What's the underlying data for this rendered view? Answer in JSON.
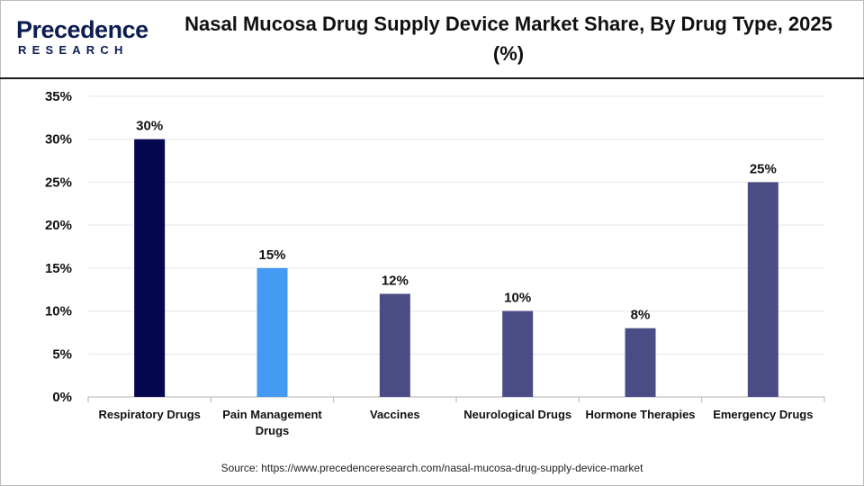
{
  "brand": {
    "logo_top": "Precedence",
    "logo_bottom": "RESEARCH"
  },
  "source_text": "Source: https://www.precedenceresearch.com/nasal-mucosa-drug-supply-device-market",
  "chart_data": {
    "type": "bar",
    "title": "Nasal Mucosa Drug Supply Device Market Share, By Drug Type, 2025 (%)",
    "xlabel": "",
    "ylabel": "",
    "categories": [
      [
        "Respiratory Drugs"
      ],
      [
        "Pain Management",
        "Drugs"
      ],
      [
        "Vaccines"
      ],
      [
        "Neurological Drugs"
      ],
      [
        "Hormone Therapies"
      ],
      [
        "Emergency Drugs"
      ]
    ],
    "values": [
      30,
      15,
      12,
      10,
      8,
      25
    ],
    "value_labels": [
      "30%",
      "15%",
      "12%",
      "10%",
      "8%",
      "25%"
    ],
    "bar_colors": [
      "#05074f",
      "#4499f3",
      "#4a4c86",
      "#4a4c86",
      "#4a4c86",
      "#4a4c86"
    ],
    "ylim": [
      0,
      35
    ],
    "yticks": [
      0,
      5,
      10,
      15,
      20,
      25,
      30,
      35
    ],
    "ytick_labels": [
      "0%",
      "5%",
      "10%",
      "15%",
      "20%",
      "25%",
      "30%",
      "35%"
    ],
    "grid": true,
    "legend": "none"
  }
}
